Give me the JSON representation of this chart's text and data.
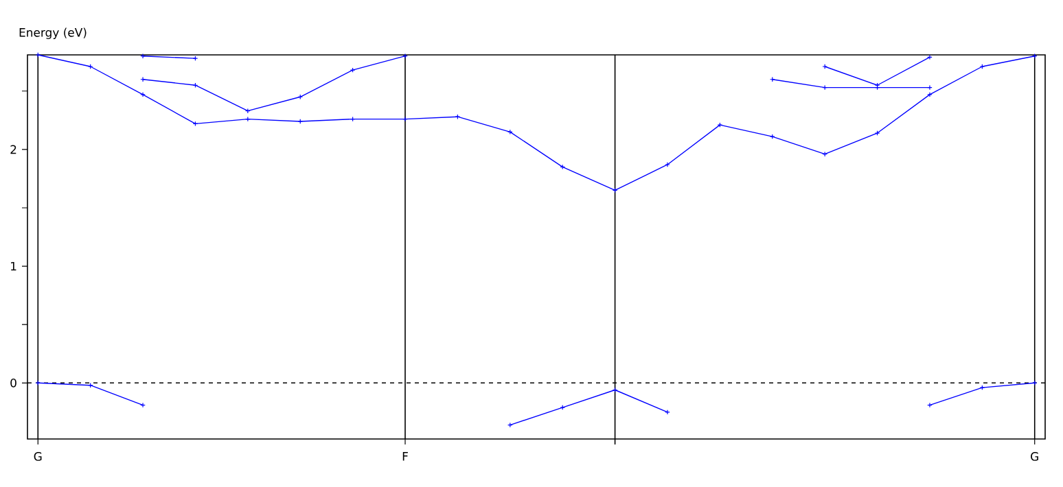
{
  "chart_data": {
    "type": "line",
    "ylabel": "Energy (eV)",
    "categories": [
      "G",
      null,
      null,
      null,
      null,
      null,
      null,
      "F",
      null,
      null,
      null,
      null,
      null,
      null,
      null,
      null,
      null,
      null,
      null,
      "G"
    ],
    "ylim": [
      -0.48,
      2.81
    ],
    "yticks": [
      0,
      {
        "value": 0.5,
        "label": null
      },
      1,
      {
        "value": 1.5,
        "label": null
      },
      2,
      {
        "value": 2.5,
        "label": null
      }
    ],
    "marker": "cross",
    "line_style": "solid",
    "grid": "x",
    "tick_labels": "xy",
    "ref_lines": [
      {
        "axis": "y",
        "value": 0,
        "color": "#000000",
        "line_style": "dashed"
      }
    ],
    "series": [
      {
        "color": "#0000ff",
        "values": [
          2.81,
          2.71,
          2.47,
          2.22,
          2.26,
          2.24,
          2.26,
          2.26,
          2.28,
          2.15,
          1.85,
          1.65,
          1.87,
          2.21,
          2.11,
          1.96,
          2.14,
          2.47,
          2.71,
          2.8
        ]
      },
      {
        "color": "#0000ff",
        "values": [
          null,
          null,
          2.6,
          2.55,
          2.33,
          2.45,
          2.68,
          2.8,
          null,
          null,
          null,
          null,
          null,
          null,
          null,
          null,
          null,
          null,
          null,
          null
        ]
      },
      {
        "color": "#0000ff",
        "values": [
          null,
          null,
          2.8,
          2.78,
          null,
          null,
          null,
          null,
          null,
          null,
          null,
          null,
          null,
          null,
          null,
          null,
          null,
          null,
          null,
          null
        ]
      },
      {
        "color": "#0000ff",
        "values": [
          null,
          null,
          null,
          null,
          null,
          null,
          null,
          null,
          null,
          null,
          null,
          null,
          null,
          null,
          2.6,
          2.53,
          2.53,
          2.53,
          null,
          null
        ]
      },
      {
        "color": "#0000ff",
        "values": [
          null,
          null,
          null,
          null,
          null,
          null,
          null,
          null,
          null,
          null,
          null,
          null,
          null,
          null,
          null,
          2.71,
          2.55,
          2.79,
          null,
          null
        ]
      },
      {
        "color": "#0000ff",
        "values": [
          0,
          -0.02,
          -0.19,
          null,
          null,
          null,
          null,
          null,
          null,
          -0.36,
          -0.21,
          -0.06,
          -0.25,
          null,
          null,
          null,
          null,
          -0.19,
          -0.04,
          0
        ]
      }
    ]
  }
}
